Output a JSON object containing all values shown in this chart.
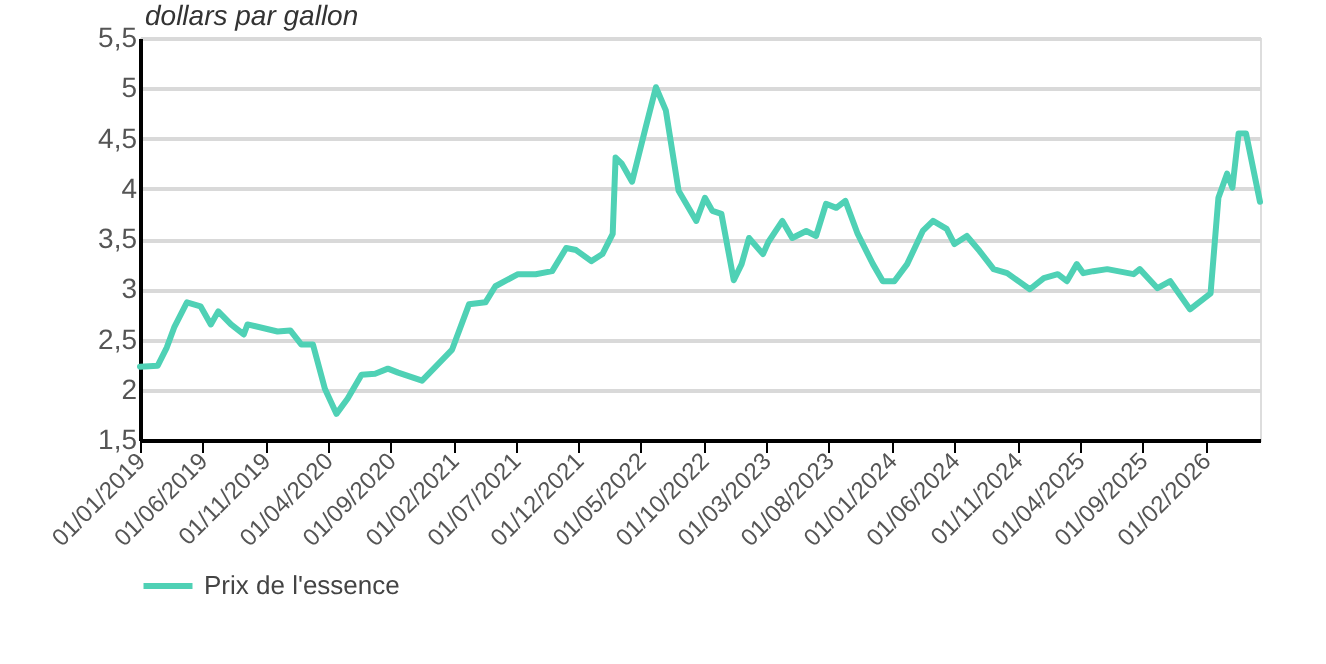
{
  "chart_data": {
    "type": "line",
    "ylabel": "dollars par gallon",
    "x": [
      "2019-01-01",
      "2019-02-13",
      "2019-03-07",
      "2019-03-25",
      "2019-04-25",
      "2019-05-28",
      "2019-06-22",
      "2019-07-10",
      "2019-08-10",
      "2019-09-10",
      "2019-09-19",
      "2019-12-01",
      "2020-01-01",
      "2020-01-28",
      "2020-02-25",
      "2020-03-25",
      "2020-04-22",
      "2020-05-19",
      "2020-06-22",
      "2020-07-25",
      "2020-08-25",
      "2020-09-19",
      "2020-11-16",
      "2020-12-19",
      "2021-01-28",
      "2021-03-10",
      "2021-04-19",
      "2021-05-13",
      "2021-07-07",
      "2021-08-19",
      "2021-09-28",
      "2021-11-01",
      "2021-11-25",
      "2022-01-01",
      "2022-01-28",
      "2022-02-22",
      "2022-03-01",
      "2022-03-16",
      "2022-04-10",
      "2022-05-13",
      "2022-06-07",
      "2022-07-01",
      "2022-08-01",
      "2022-09-13",
      "2022-10-04",
      "2022-10-22",
      "2022-11-13",
      "2022-12-13",
      "2023-01-01",
      "2023-01-19",
      "2023-02-22",
      "2023-03-07",
      "2023-04-10",
      "2023-05-04",
      "2023-06-07",
      "2023-07-01",
      "2023-07-25",
      "2023-08-19",
      "2023-09-10",
      "2023-10-10",
      "2023-11-16",
      "2023-12-10",
      "2024-01-07",
      "2024-02-07",
      "2024-03-16",
      "2024-04-10",
      "2024-05-13",
      "2024-06-01",
      "2024-07-01",
      "2024-08-01",
      "2024-09-04",
      "2024-10-07",
      "2024-12-01",
      "2025-01-04",
      "2025-02-07",
      "2025-03-01",
      "2025-03-25",
      "2025-04-10",
      "2025-05-04",
      "2025-06-07",
      "2025-08-10",
      "2025-08-25",
      "2025-10-07",
      "2025-11-07",
      "2025-12-25",
      "2026-02-13",
      "2026-03-04",
      "2026-03-25",
      "2026-04-07",
      "2026-04-22",
      "2026-05-10",
      "2026-06-13"
    ],
    "series": [
      {
        "name": "Prix de l'essence",
        "color": "#4fd1b5",
        "values": [
          2.23,
          2.24,
          2.42,
          2.62,
          2.87,
          2.83,
          2.65,
          2.78,
          2.65,
          2.55,
          2.65,
          2.58,
          2.59,
          2.45,
          2.45,
          2.01,
          1.76,
          1.91,
          2.15,
          2.16,
          2.21,
          2.17,
          2.09,
          2.23,
          2.4,
          2.85,
          2.87,
          3.03,
          3.15,
          3.15,
          3.18,
          3.41,
          3.39,
          3.28,
          3.35,
          3.55,
          4.31,
          4.25,
          4.07,
          4.61,
          5.01,
          4.78,
          3.98,
          3.68,
          3.91,
          3.78,
          3.75,
          3.09,
          3.25,
          3.51,
          3.35,
          3.47,
          3.68,
          3.51,
          3.58,
          3.53,
          3.85,
          3.81,
          3.88,
          3.55,
          3.25,
          3.08,
          3.08,
          3.25,
          3.58,
          3.68,
          3.6,
          3.45,
          3.53,
          3.38,
          3.2,
          3.16,
          3.0,
          3.11,
          3.15,
          3.08,
          3.25,
          3.16,
          3.18,
          3.2,
          3.15,
          3.2,
          3.01,
          3.08,
          2.8,
          2.96,
          3.91,
          4.15,
          4.01,
          4.55,
          4.55,
          3.87
        ]
      }
    ],
    "xlim": [
      "2019-01-01",
      "2026-06-13"
    ],
    "xticks": [
      {
        "value": "2019-01-01",
        "label": "01/01/2019"
      },
      {
        "value": "2019-06-01",
        "label": "01/06/2019"
      },
      {
        "value": "2019-11-01",
        "label": "01/11/2019"
      },
      {
        "value": "2020-04-01",
        "label": "01/04/2020"
      },
      {
        "value": "2020-09-01",
        "label": "01/09/2020"
      },
      {
        "value": "2021-02-01",
        "label": "01/02/2021"
      },
      {
        "value": "2021-07-01",
        "label": "01/07/2021"
      },
      {
        "value": "2021-12-01",
        "label": "01/12/2021"
      },
      {
        "value": "2022-05-01",
        "label": "01/05/2022"
      },
      {
        "value": "2022-10-01",
        "label": "01/10/2022"
      },
      {
        "value": "2023-03-01",
        "label": "01/03/2023"
      },
      {
        "value": "2023-08-01",
        "label": "01/08/2023"
      },
      {
        "value": "2024-01-01",
        "label": "01/01/2024"
      },
      {
        "value": "2024-06-01",
        "label": "01/06/2024"
      },
      {
        "value": "2024-11-01",
        "label": "01/11/2024"
      },
      {
        "value": "2025-04-01",
        "label": "01/04/2025"
      },
      {
        "value": "2025-09-01",
        "label": "01/09/2025"
      },
      {
        "value": "2026-02-01",
        "label": "01/02/2026"
      }
    ],
    "ylim": [
      1.5,
      5.5
    ],
    "yticks": [
      {
        "value": 1.5,
        "label": "1,5"
      },
      2,
      {
        "value": 2.5,
        "label": "2,5"
      },
      3,
      {
        "value": 3.5,
        "label": "3,5"
      },
      4,
      {
        "value": 4.5,
        "label": "4,5"
      },
      5,
      {
        "value": 5.5,
        "label": "5,5"
      }
    ],
    "grid": "y",
    "legend": "bottom",
    "marker": "none",
    "line_style": "solid"
  }
}
